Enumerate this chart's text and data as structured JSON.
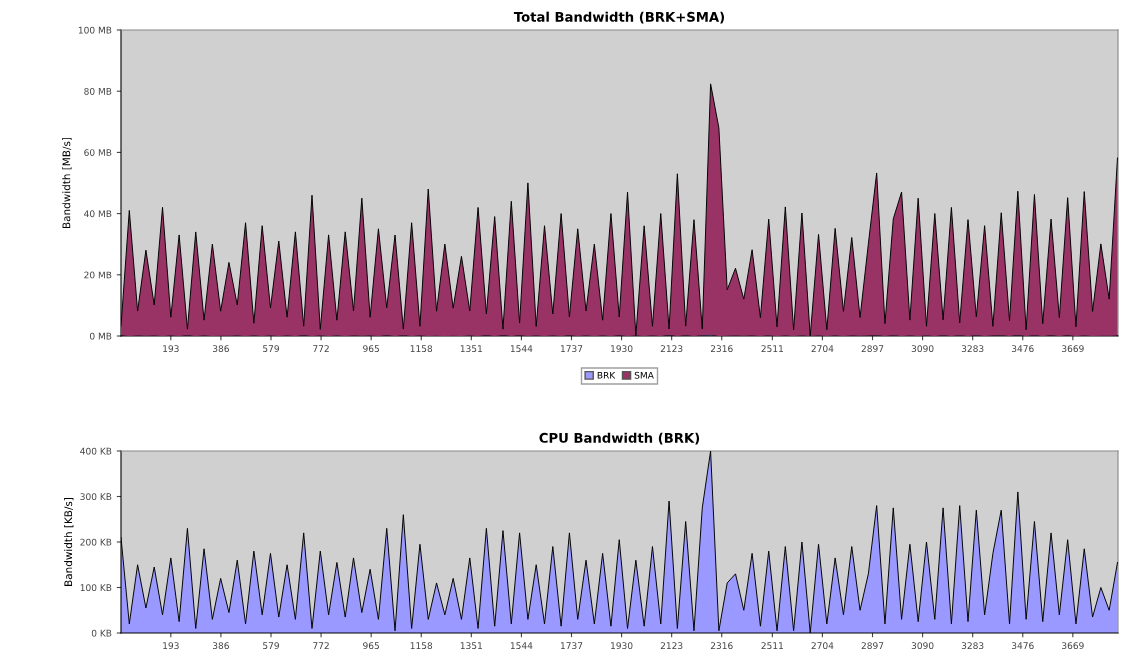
{
  "chart_data": [
    {
      "type": "area",
      "title": "Total Bandwidth (BRK+SMA)",
      "ylabel": "Bandwidth [MB/s]",
      "stacked": true,
      "legend": "bottom",
      "grid": false,
      "x": [
        1,
        33,
        65,
        97,
        129,
        161,
        193,
        225,
        257,
        289,
        321,
        353,
        385,
        417,
        449,
        481,
        513,
        545,
        577,
        609,
        641,
        673,
        705,
        737,
        769,
        801,
        833,
        865,
        897,
        929,
        961,
        993,
        1025,
        1057,
        1089,
        1121,
        1153,
        1185,
        1217,
        1249,
        1281,
        1313,
        1345,
        1377,
        1409,
        1441,
        1473,
        1505,
        1537,
        1569,
        1601,
        1633,
        1665,
        1697,
        1729,
        1761,
        1793,
        1825,
        1857,
        1889,
        1921,
        1953,
        1985,
        2017,
        2049,
        2081,
        2113,
        2145,
        2177,
        2209,
        2241,
        2273,
        2305,
        2337,
        2369,
        2401,
        2433,
        2465,
        2497,
        2529,
        2561,
        2593,
        2625,
        2657,
        2689,
        2721,
        2753,
        2785,
        2817,
        2849,
        2881,
        2913,
        2945,
        2977,
        3009,
        3041,
        3073,
        3105,
        3137,
        3169,
        3201,
        3233,
        3265,
        3297,
        3329,
        3361,
        3393,
        3425,
        3457,
        3489,
        3521,
        3553,
        3585,
        3617,
        3649,
        3681,
        3713,
        3745,
        3777,
        3809,
        3841
      ],
      "series": [
        {
          "name": "BRK",
          "color": "#9999ff",
          "values": [
            0.21,
            0.02,
            0.15,
            0.055,
            0.145,
            0.04,
            0.165,
            0.025,
            0.23,
            0.01,
            0.185,
            0.03,
            0.12,
            0.045,
            0.16,
            0.02,
            0.18,
            0.04,
            0.175,
            0.035,
            0.15,
            0.03,
            0.22,
            0.01,
            0.18,
            0.04,
            0.155,
            0.035,
            0.165,
            0.045,
            0.14,
            0.03,
            0.23,
            0.005,
            0.26,
            0.01,
            0.195,
            0.03,
            0.11,
            0.04,
            0.12,
            0.03,
            0.165,
            0.01,
            0.23,
            0.015,
            0.225,
            0.02,
            0.22,
            0.03,
            0.15,
            0.02,
            0.19,
            0.015,
            0.22,
            0.03,
            0.16,
            0.02,
            0.175,
            0.015,
            0.205,
            0.01,
            0.16,
            0.015,
            0.19,
            0.02,
            0.29,
            0.01,
            0.245,
            0.005,
            0.275,
            0.4,
            0.005,
            0.11,
            0.13,
            0.05,
            0.175,
            0.015,
            0.18,
            0.005,
            0.19,
            0.005,
            0.2,
            0,
            0.195,
            0.02,
            0.165,
            0.04,
            0.19,
            0.05,
            0.13,
            0.28,
            0.02,
            0.275,
            0.03,
            0.195,
            0.025,
            0.2,
            0.03,
            0.275,
            0.02,
            0.28,
            0.025,
            0.27,
            0.04,
            0.175,
            0.27,
            0.02,
            0.31,
            0.03,
            0.245,
            0.025,
            0.22,
            0.04,
            0.205,
            0.02,
            0.185,
            0.035,
            0.1,
            0.05,
            0.155
          ]
        },
        {
          "name": "SMA",
          "color": "#993366",
          "values": [
            3,
            41,
            8,
            28,
            10,
            42,
            6,
            33,
            2,
            34,
            5,
            30,
            8,
            24,
            10,
            37,
            4,
            36,
            9,
            31,
            6,
            34,
            3,
            46,
            2,
            33,
            5,
            34,
            8,
            45,
            6,
            35,
            9,
            33,
            2,
            37,
            3,
            48,
            8,
            30,
            9,
            26,
            8,
            42,
            7,
            39,
            2,
            44,
            4,
            50,
            3,
            36,
            7,
            40,
            6,
            35,
            8,
            30,
            5,
            40,
            6,
            47,
            0,
            36,
            3,
            40,
            2,
            53,
            3,
            38,
            2,
            82,
            68,
            15,
            22,
            12,
            28,
            6,
            38,
            3,
            42,
            2,
            40,
            0,
            33,
            2,
            35,
            8,
            32,
            6,
            30,
            53,
            4,
            38,
            47,
            5,
            45,
            3,
            40,
            5,
            42,
            4,
            38,
            6,
            36,
            3,
            40,
            5,
            47,
            2,
            46,
            4,
            38,
            6,
            45,
            3,
            47,
            8,
            30,
            12,
            58
          ]
        }
      ],
      "xlim": [
        1,
        3843
      ],
      "xticks": [
        193,
        386,
        579,
        772,
        965,
        1158,
        1351,
        1544,
        1737,
        1930,
        2123,
        2316,
        2511,
        2704,
        2897,
        3090,
        3283,
        3476,
        3669
      ],
      "ylim": [
        0,
        100
      ],
      "yticks": [
        {
          "value": 0,
          "label": "0 MB"
        },
        {
          "value": 20,
          "label": "20 MB"
        },
        {
          "value": 40,
          "label": "40 MB"
        },
        {
          "value": 60,
          "label": "60 MB"
        },
        {
          "value": 80,
          "label": "80 MB"
        },
        {
          "value": 100,
          "label": "100 MB"
        }
      ]
    },
    {
      "type": "area",
      "title": "CPU Bandwidth (BRK)",
      "ylabel": "Bandwidth [KB/s]",
      "grid": false,
      "x": [
        1,
        33,
        65,
        97,
        129,
        161,
        193,
        225,
        257,
        289,
        321,
        353,
        385,
        417,
        449,
        481,
        513,
        545,
        577,
        609,
        641,
        673,
        705,
        737,
        769,
        801,
        833,
        865,
        897,
        929,
        961,
        993,
        1025,
        1057,
        1089,
        1121,
        1153,
        1185,
        1217,
        1249,
        1281,
        1313,
        1345,
        1377,
        1409,
        1441,
        1473,
        1505,
        1537,
        1569,
        1601,
        1633,
        1665,
        1697,
        1729,
        1761,
        1793,
        1825,
        1857,
        1889,
        1921,
        1953,
        1985,
        2017,
        2049,
        2081,
        2113,
        2145,
        2177,
        2209,
        2241,
        2273,
        2305,
        2337,
        2369,
        2401,
        2433,
        2465,
        2497,
        2529,
        2561,
        2593,
        2625,
        2657,
        2689,
        2721,
        2753,
        2785,
        2817,
        2849,
        2881,
        2913,
        2945,
        2977,
        3009,
        3041,
        3073,
        3105,
        3137,
        3169,
        3201,
        3233,
        3265,
        3297,
        3329,
        3361,
        3393,
        3425,
        3457,
        3489,
        3521,
        3553,
        3585,
        3617,
        3649,
        3681,
        3713,
        3745,
        3777,
        3809,
        3841
      ],
      "series": [
        {
          "color": "#9999ff",
          "values": [
            210,
            20,
            150,
            55,
            145,
            40,
            165,
            25,
            230,
            10,
            185,
            30,
            120,
            45,
            160,
            20,
            180,
            40,
            175,
            35,
            150,
            30,
            220,
            10,
            180,
            40,
            155,
            35,
            165,
            45,
            140,
            30,
            230,
            5,
            260,
            10,
            195,
            30,
            110,
            40,
            120,
            30,
            165,
            10,
            230,
            15,
            225,
            20,
            220,
            30,
            150,
            20,
            190,
            15,
            220,
            30,
            160,
            20,
            175,
            15,
            205,
            10,
            160,
            15,
            190,
            20,
            290,
            10,
            245,
            5,
            275,
            400,
            5,
            110,
            130,
            50,
            175,
            15,
            180,
            5,
            190,
            5,
            200,
            0,
            195,
            20,
            165,
            40,
            190,
            50,
            130,
            280,
            20,
            275,
            30,
            195,
            25,
            200,
            30,
            275,
            20,
            280,
            25,
            270,
            40,
            175,
            270,
            20,
            310,
            30,
            245,
            25,
            220,
            40,
            205,
            20,
            185,
            35,
            100,
            50,
            155
          ]
        }
      ],
      "xlim": [
        1,
        3843
      ],
      "xticks": [
        193,
        386,
        579,
        772,
        965,
        1158,
        1351,
        1544,
        1737,
        1930,
        2123,
        2316,
        2511,
        2704,
        2897,
        3090,
        3283,
        3476,
        3669
      ],
      "ylim": [
        0,
        400
      ],
      "yticks": [
        {
          "value": 0,
          "label": "0 KB"
        },
        {
          "value": 100,
          "label": "100 KB"
        },
        {
          "value": 200,
          "label": "200 KB"
        },
        {
          "value": 300,
          "label": "300 KB"
        },
        {
          "value": 400,
          "label": "400 KB"
        }
      ]
    }
  ]
}
